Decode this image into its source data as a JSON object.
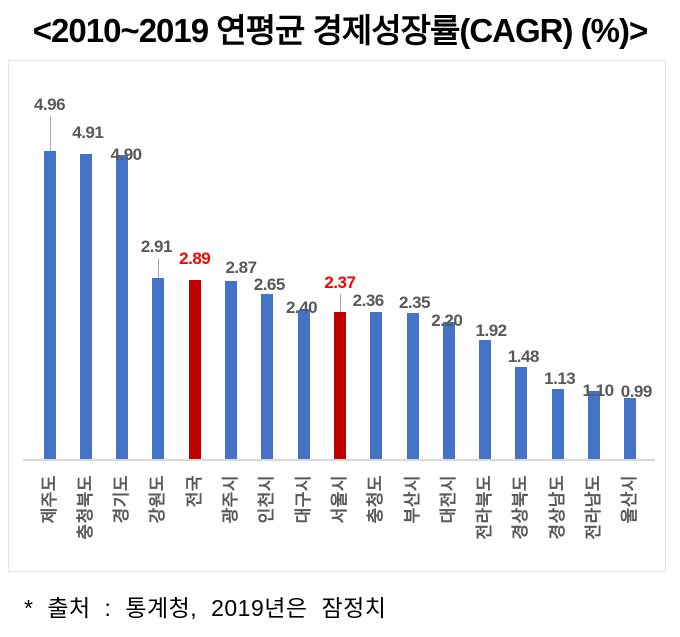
{
  "header": {
    "title": "<2010~2019 연평균 경제성장률(CAGR) (%)>"
  },
  "chart_data": {
    "type": "bar",
    "title": "<2010~2019 연평균 경제성장률(CAGR) (%)>",
    "unit": "%",
    "categories": [
      "제주도",
      "충청북도",
      "경기도",
      "강원도",
      "전국",
      "광주시",
      "인천시",
      "대구시",
      "서울시",
      "충청도",
      "부산시",
      "대전시",
      "전라북도",
      "경상북도",
      "경상남도",
      "전라남도",
      "울산시"
    ],
    "values": [
      4.96,
      4.91,
      4.9,
      2.91,
      2.89,
      2.87,
      2.65,
      2.4,
      2.37,
      2.36,
      2.35,
      2.2,
      1.92,
      1.48,
      1.13,
      1.1,
      0.99
    ],
    "value_labels": [
      "4.96",
      "4.91",
      "4.90",
      "2.91",
      "2.89",
      "2.87",
      "2.65",
      "2.40",
      "2.37",
      "2.36",
      "2.35",
      "2.20",
      "1.92",
      "1.48",
      "1.13",
      "1.10",
      "0.99"
    ],
    "highlight_indices": [
      4,
      8
    ],
    "colors": {
      "bar": "#4472C4",
      "highlight_bar": "#C00000",
      "value_label": "#595959",
      "highlight_value_label": "#FF0000",
      "category_label": "#595959",
      "axis_line": "#D9D9D9",
      "leader_line": "#ABABAB"
    },
    "ylim": [
      0,
      5.2
    ],
    "grid": false,
    "legend": "none",
    "layout_hints": {
      "label_dy": [
        37,
        12,
        -9,
        22,
        12,
        4,
        0,
        -7,
        20,
        2,
        1,
        -8,
        0,
        1,
        1,
        -9,
        -3
      ],
      "label_dx": [
        0,
        2,
        4,
        -2,
        0,
        10,
        2,
        -2,
        0,
        -8,
        2,
        -2,
        6,
        2,
        2,
        4,
        6
      ],
      "leader_indices": [
        0,
        3,
        8
      ]
    }
  },
  "footnote": {
    "text": "* 출처 : 통계청, 2019년은 잠정치"
  }
}
